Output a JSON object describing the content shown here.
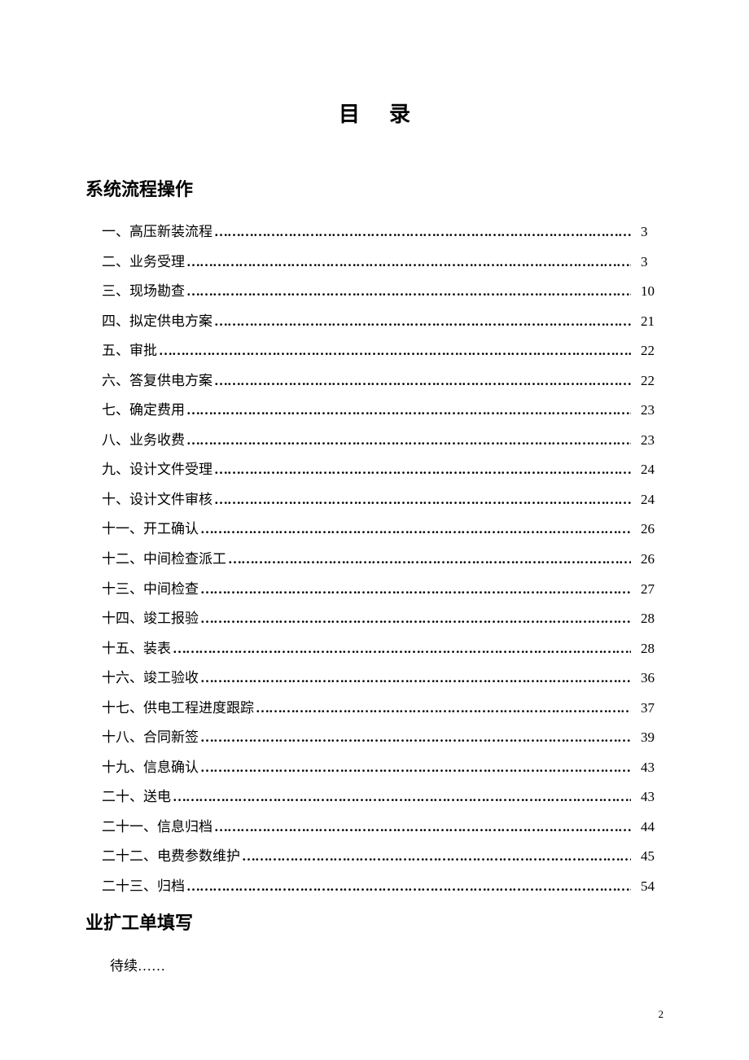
{
  "title": "目录",
  "section1_header": "系统流程操作",
  "section2_header": "业扩工单填写",
  "footer_text": "待续……",
  "page_number": "2",
  "dots": "…………………………………………………………………………………………………………………………………………",
  "toc": [
    {
      "label": "一、高压新装流程",
      "page": "3"
    },
    {
      "label": "二、业务受理",
      "page": "3"
    },
    {
      "label": "三、现场勘查",
      "page": "10"
    },
    {
      "label": "四、拟定供电方案",
      "page": "21"
    },
    {
      "label": "五、审批",
      "page": "22"
    },
    {
      "label": "六、答复供电方案",
      "page": "22"
    },
    {
      "label": "七、确定费用",
      "page": "23"
    },
    {
      "label": "八、业务收费",
      "page": "23"
    },
    {
      "label": "九、设计文件受理",
      "page": "24"
    },
    {
      "label": "十、设计文件审核",
      "page": "24"
    },
    {
      "label": "十一、开工确认",
      "page": "26"
    },
    {
      "label": "十二、中间检查派工",
      "page": "26"
    },
    {
      "label": "十三、中间检查",
      "page": "27"
    },
    {
      "label": "十四、竣工报验",
      "page": "28"
    },
    {
      "label": "十五、装表",
      "page": "28"
    },
    {
      "label": "十六、竣工验收",
      "page": "36"
    },
    {
      "label": "十七、供电工程进度跟踪",
      "page": "37"
    },
    {
      "label": "十八、合同新签",
      "page": "39"
    },
    {
      "label": "十九、信息确认",
      "page": "43"
    },
    {
      "label": "二十、送电",
      "page": "43"
    },
    {
      "label": "二十一、信息归档",
      "page": "44"
    },
    {
      "label": "二十二、电费参数维护",
      "page": "45"
    },
    {
      "label": "二十三、归档",
      "page": "54"
    }
  ]
}
